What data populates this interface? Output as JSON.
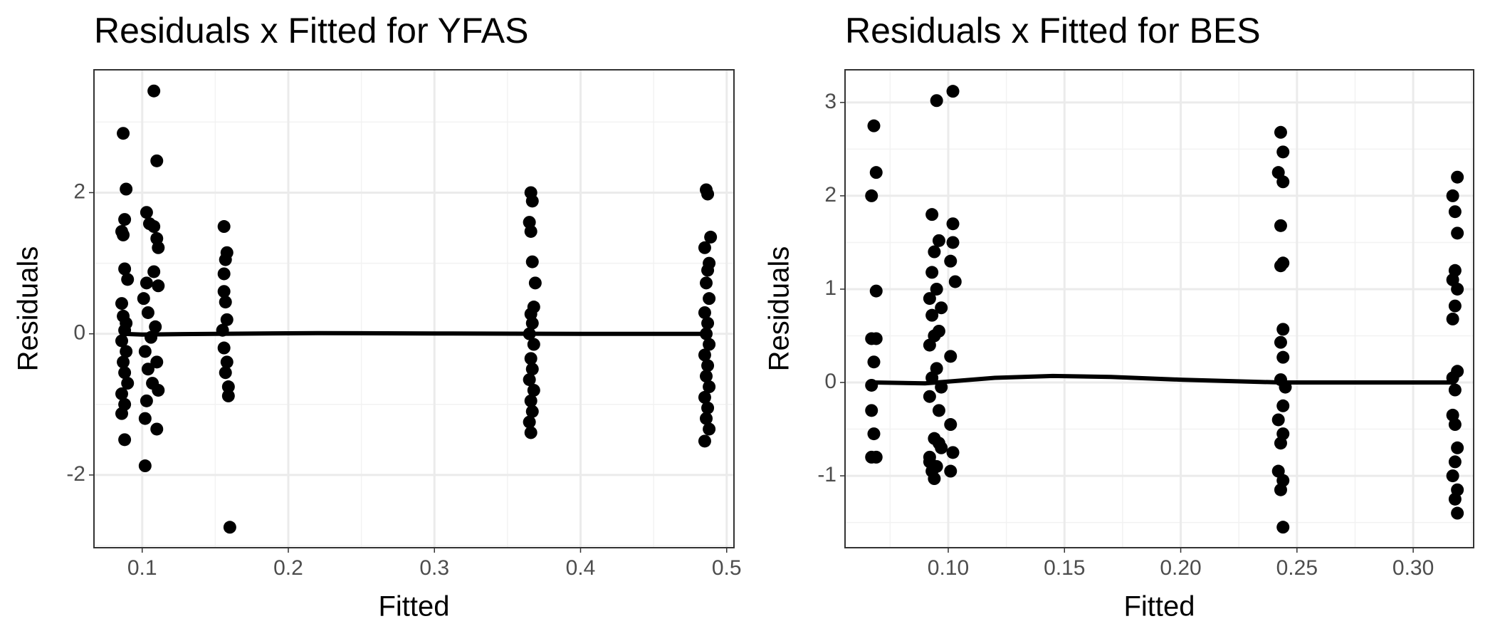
{
  "chart_data": [
    {
      "type": "scatter",
      "title": "Residuals x Fitted for YFAS",
      "x_label": "Fitted",
      "y_label": "Residuals",
      "xlim": [
        0.067,
        0.505
      ],
      "ylim": [
        -3.03,
        3.74
      ],
      "xticks": [
        0.1,
        0.2,
        0.3,
        0.4,
        0.5
      ],
      "yticks": [
        -2,
        0,
        2
      ],
      "grid": true,
      "minor_grid": true,
      "series": [
        {
          "kind": "points",
          "color": "#000000",
          "x": [
            0.087,
            0.089,
            0.088,
            0.086,
            0.087,
            0.088,
            0.09,
            0.086,
            0.087,
            0.089,
            0.088,
            0.086,
            0.089,
            0.087,
            0.088,
            0.09,
            0.086,
            0.088,
            0.086,
            0.088,
            0.108,
            0.11,
            0.103,
            0.105,
            0.108,
            0.11,
            0.111,
            0.108,
            0.103,
            0.111,
            0.101,
            0.104,
            0.109,
            0.106,
            0.102,
            0.11,
            0.104,
            0.107,
            0.111,
            0.103,
            0.102,
            0.11,
            0.102,
            0.156,
            0.158,
            0.157,
            0.156,
            0.156,
            0.157,
            0.158,
            0.155,
            0.156,
            0.158,
            0.157,
            0.159,
            0.159,
            0.16,
            0.366,
            0.367,
            0.365,
            0.366,
            0.367,
            0.369,
            0.368,
            0.366,
            0.367,
            0.365,
            0.368,
            0.366,
            0.367,
            0.365,
            0.368,
            0.366,
            0.367,
            0.365,
            0.366,
            0.486,
            0.487,
            0.489,
            0.485,
            0.488,
            0.487,
            0.486,
            0.488,
            0.485,
            0.487,
            0.486,
            0.488,
            0.485,
            0.487,
            0.486,
            0.488,
            0.485,
            0.487,
            0.486,
            0.488,
            0.485
          ],
          "values": [
            2.84,
            2.05,
            1.62,
            1.45,
            1.4,
            0.92,
            0.77,
            0.43,
            0.25,
            0.15,
            0.05,
            -0.1,
            -0.25,
            -0.4,
            -0.55,
            -0.7,
            -0.85,
            -1.0,
            -1.13,
            -1.5,
            3.44,
            2.45,
            1.72,
            1.56,
            1.52,
            1.35,
            1.22,
            0.88,
            0.72,
            0.68,
            0.5,
            0.3,
            0.1,
            -0.05,
            -0.25,
            -0.4,
            -0.5,
            -0.7,
            -0.8,
            -0.95,
            -1.2,
            -1.35,
            -1.87,
            1.52,
            1.15,
            1.05,
            0.85,
            0.6,
            0.45,
            0.2,
            0.05,
            -0.2,
            -0.4,
            -0.55,
            -0.75,
            -0.88,
            -2.74,
            2.0,
            1.88,
            1.58,
            1.45,
            1.02,
            0.72,
            0.38,
            0.28,
            0.15,
            0.0,
            -0.15,
            -0.35,
            -0.5,
            -0.65,
            -0.8,
            -0.95,
            -1.1,
            -1.25,
            -1.4,
            2.04,
            1.98,
            1.37,
            1.22,
            1.0,
            0.9,
            0.72,
            0.5,
            0.3,
            0.15,
            0.0,
            -0.15,
            -0.3,
            -0.45,
            -0.6,
            -0.75,
            -0.9,
            -1.05,
            -1.2,
            -1.35,
            -1.52
          ]
        },
        {
          "kind": "line",
          "color": "#000000",
          "x": [
            0.087,
            0.1,
            0.15,
            0.22,
            0.3,
            0.4,
            0.487
          ],
          "values": [
            0.0,
            -0.01,
            0.0,
            0.01,
            0.005,
            0.0,
            0.0
          ]
        }
      ]
    },
    {
      "type": "scatter",
      "title": "Residuals x Fitted for BES",
      "x_label": "Fitted",
      "y_label": "Residuals",
      "xlim": [
        0.0556,
        0.326
      ],
      "ylim": [
        -1.77,
        3.35
      ],
      "xticks": [
        {
          "value": 0.1,
          "label": "0.10"
        },
        {
          "value": 0.15,
          "label": "0.15"
        },
        {
          "value": 0.2,
          "label": "0.20"
        },
        {
          "value": 0.25,
          "label": "0.25"
        },
        {
          "value": 0.3,
          "label": "0.30"
        }
      ],
      "yticks": [
        -1,
        0,
        1,
        2,
        3
      ],
      "grid": true,
      "minor_grid": true,
      "series": [
        {
          "kind": "points",
          "color": "#000000",
          "x": [
            0.068,
            0.069,
            0.067,
            0.069,
            0.067,
            0.069,
            0.068,
            0.067,
            0.067,
            0.068,
            0.067,
            0.069,
            0.095,
            0.102,
            0.093,
            0.102,
            0.096,
            0.102,
            0.094,
            0.101,
            0.093,
            0.103,
            0.095,
            0.092,
            0.097,
            0.093,
            0.096,
            0.094,
            0.092,
            0.101,
            0.095,
            0.093,
            0.097,
            0.092,
            0.096,
            0.101,
            0.094,
            0.097,
            0.092,
            0.095,
            0.093,
            0.101,
            0.094,
            0.102,
            0.092,
            0.096,
            0.243,
            0.244,
            0.242,
            0.244,
            0.243,
            0.244,
            0.243,
            0.244,
            0.243,
            0.244,
            0.243,
            0.245,
            0.244,
            0.242,
            0.244,
            0.243,
            0.242,
            0.244,
            0.243,
            0.244,
            0.319,
            0.317,
            0.318,
            0.319,
            0.318,
            0.317,
            0.319,
            0.318,
            0.317,
            0.319,
            0.317,
            0.318,
            0.317,
            0.318,
            0.319,
            0.318,
            0.317,
            0.319,
            0.318,
            0.319
          ],
          "values": [
            2.75,
            2.25,
            2.0,
            0.98,
            0.47,
            0.47,
            0.22,
            -0.03,
            -0.3,
            -0.55,
            -0.8,
            -0.8,
            3.02,
            3.12,
            1.8,
            1.7,
            1.52,
            1.5,
            1.4,
            1.3,
            1.18,
            1.08,
            1.0,
            0.9,
            0.8,
            0.72,
            0.55,
            0.5,
            0.4,
            0.28,
            0.15,
            0.05,
            -0.05,
            -0.15,
            -0.3,
            -0.45,
            -0.6,
            -0.7,
            -0.8,
            -0.9,
            -0.95,
            -0.95,
            -1.03,
            -0.75,
            -0.85,
            -0.65,
            2.68,
            2.47,
            2.25,
            2.15,
            1.68,
            1.28,
            1.25,
            0.57,
            0.43,
            0.27,
            0.03,
            -0.05,
            -0.25,
            -0.4,
            -0.55,
            -0.65,
            -0.95,
            -1.05,
            -1.15,
            -1.55,
            2.2,
            2.0,
            1.83,
            1.6,
            1.2,
            1.1,
            1.0,
            0.82,
            0.68,
            0.12,
            0.05,
            -0.08,
            -0.35,
            -0.45,
            -0.7,
            -0.85,
            -1.0,
            -1.15,
            -1.25,
            -1.4
          ]
        },
        {
          "kind": "line",
          "color": "#000000",
          "x": [
            0.068,
            0.09,
            0.1,
            0.12,
            0.145,
            0.17,
            0.2,
            0.243,
            0.28,
            0.318
          ],
          "values": [
            0.0,
            -0.01,
            0.01,
            0.05,
            0.07,
            0.06,
            0.03,
            0.0,
            0.0,
            0.0
          ]
        }
      ]
    }
  ]
}
